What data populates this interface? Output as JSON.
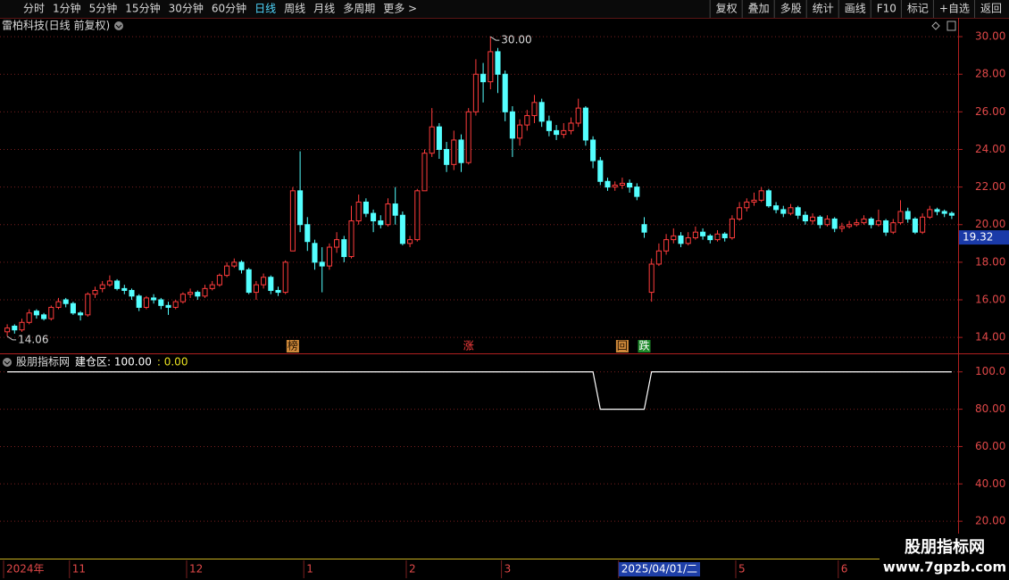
{
  "toolbar": {
    "periods": [
      {
        "label": "分时",
        "active": false
      },
      {
        "label": "1分钟",
        "active": false
      },
      {
        "label": "5分钟",
        "active": false
      },
      {
        "label": "15分钟",
        "active": false
      },
      {
        "label": "30分钟",
        "active": false
      },
      {
        "label": "60分钟",
        "active": false
      },
      {
        "label": "日线",
        "active": true
      },
      {
        "label": "周线",
        "active": false
      },
      {
        "label": "月线",
        "active": false
      },
      {
        "label": "多周期",
        "active": false
      },
      {
        "label": "更多 >",
        "active": false
      }
    ],
    "tools": [
      "复权",
      "叠加",
      "多股",
      "统计",
      "画线",
      "F10",
      "标记",
      "+自选",
      "返回"
    ]
  },
  "chart_data": {
    "type": "candlestick",
    "title": "雷柏科技(日线 前复权)",
    "up_color": "#ff3c3c",
    "down_color": "#54ffff",
    "grid": true,
    "ylim": [
      13.2,
      31.0
    ],
    "yticks": [
      {
        "value": 14,
        "label": "14.00"
      },
      {
        "value": 16,
        "label": "16.00"
      },
      {
        "value": 18,
        "label": "18.00"
      },
      {
        "value": 20,
        "label": "20.00"
      },
      {
        "value": 22,
        "label": "22.00"
      },
      {
        "value": 24,
        "label": "24.00"
      },
      {
        "value": 26,
        "label": "26.00"
      },
      {
        "value": 28,
        "label": "28.00"
      },
      {
        "value": 30,
        "label": "30.00"
      }
    ],
    "max_label": "30.00",
    "min_label": "14.06",
    "cursor_price": {
      "value": 19.32,
      "label": "19.32"
    },
    "axis_cursor_index": 84,
    "categories": [
      "2024年",
      null,
      null,
      null,
      null,
      null,
      null,
      null,
      null,
      "11",
      null,
      null,
      null,
      null,
      null,
      null,
      null,
      null,
      null,
      null,
      null,
      null,
      null,
      null,
      null,
      "12",
      null,
      null,
      null,
      null,
      null,
      null,
      null,
      null,
      null,
      null,
      null,
      null,
      null,
      null,
      null,
      "1",
      null,
      null,
      null,
      null,
      null,
      null,
      null,
      null,
      null,
      null,
      null,
      null,
      null,
      "2",
      null,
      null,
      null,
      null,
      null,
      null,
      null,
      null,
      null,
      null,
      null,
      null,
      "3",
      null,
      null,
      null,
      null,
      null,
      null,
      null,
      null,
      null,
      null,
      null,
      null,
      null,
      null,
      null,
      "2025/04/01/二",
      null,
      null,
      null,
      null,
      null,
      null,
      null,
      null,
      null,
      null,
      null,
      null,
      null,
      null,
      null,
      "5",
      null,
      null,
      null,
      null,
      null,
      null,
      null,
      null,
      null,
      null,
      null,
      null,
      null,
      "6",
      null,
      null,
      null,
      null,
      null,
      null,
      null,
      null,
      null,
      null,
      null,
      null,
      null,
      null,
      null
    ],
    "open": [
      14.3,
      14.6,
      14.4,
      14.8,
      15.4,
      15.2,
      15.0,
      15.6,
      16.0,
      15.8,
      15.3,
      15.2,
      16.3,
      16.6,
      16.8,
      17.0,
      16.6,
      16.5,
      16.2,
      15.6,
      16.1,
      16.0,
      15.7,
      15.6,
      15.9,
      16.3,
      16.4,
      16.2,
      16.6,
      16.8,
      17.3,
      17.8,
      18.0,
      17.6,
      16.4,
      16.8,
      17.2,
      16.5,
      16.4,
      18.6,
      21.8,
      20.0,
      19.0,
      18.0,
      17.8,
      18.8,
      19.2,
      18.3,
      20.2,
      21.2,
      20.6,
      20.2,
      20.0,
      21.1,
      20.5,
      19.0,
      19.2,
      21.8,
      23.8,
      25.2,
      24.0,
      23.2,
      24.5,
      23.3,
      26.0,
      28.0,
      27.6,
      29.2,
      28.0,
      26.0,
      24.6,
      25.3,
      25.8,
      26.5,
      25.5,
      25.0,
      24.8,
      25.0,
      25.4,
      26.2,
      24.5,
      23.4,
      22.3,
      22.0,
      22.1,
      22.2,
      22.0,
      20.0,
      16.4,
      17.9,
      18.6,
      19.2,
      19.4,
      19.0,
      19.3,
      19.6,
      19.4,
      19.2,
      19.5,
      19.3,
      20.3,
      20.9,
      21.2,
      21.3,
      21.8,
      21.0,
      20.8,
      20.6,
      20.9,
      20.5,
      20.2,
      20.4,
      20.0,
      20.3,
      19.8,
      19.9,
      20.0,
      20.1,
      20.3,
      20.0,
      20.2,
      19.6,
      20.1,
      20.7,
      20.3,
      19.6,
      20.4,
      20.8,
      20.7,
      20.6
    ],
    "high": [
      14.7,
      14.7,
      15.0,
      15.5,
      15.5,
      15.3,
      15.7,
      16.1,
      16.1,
      15.9,
      15.4,
      16.4,
      16.7,
      17.0,
      17.3,
      17.1,
      16.8,
      16.6,
      16.3,
      16.2,
      16.3,
      16.1,
      15.9,
      16.0,
      16.4,
      16.6,
      16.5,
      16.8,
      17.0,
      17.4,
      18.0,
      18.2,
      18.1,
      17.7,
      17.0,
      17.4,
      17.3,
      16.7,
      18.1,
      22.0,
      23.9,
      20.4,
      19.2,
      18.8,
      19.0,
      19.6,
      19.4,
      21.0,
      21.6,
      21.4,
      20.8,
      20.5,
      21.4,
      22.0,
      20.7,
      19.4,
      21.9,
      24.0,
      26.2,
      25.4,
      24.4,
      25.0,
      24.8,
      26.2,
      28.8,
      28.6,
      30.0,
      29.4,
      28.2,
      26.3,
      25.6,
      26.1,
      26.9,
      26.7,
      25.8,
      25.3,
      25.4,
      25.7,
      26.7,
      26.3,
      24.7,
      23.6,
      22.5,
      22.3,
      22.5,
      22.4,
      22.2,
      20.4,
      18.2,
      19.0,
      19.5,
      19.8,
      19.6,
      19.6,
      19.9,
      19.8,
      19.5,
      19.7,
      19.6,
      20.5,
      21.2,
      21.4,
      21.7,
      22.0,
      21.9,
      21.2,
      21.0,
      21.1,
      21.0,
      20.7,
      20.6,
      20.5,
      20.5,
      20.4,
      20.1,
      20.2,
      20.3,
      20.5,
      20.4,
      20.8,
      20.3,
      20.3,
      21.3,
      20.9,
      20.4,
      20.6,
      21.0,
      20.9,
      20.8,
      20.7
    ],
    "low": [
      14.06,
      14.2,
      14.3,
      14.7,
      15.0,
      14.9,
      14.9,
      15.5,
      15.6,
      15.2,
      14.9,
      15.1,
      16.1,
      16.4,
      16.7,
      16.5,
      16.3,
      16.0,
      15.4,
      15.5,
      15.8,
      15.5,
      15.2,
      15.5,
      15.8,
      16.1,
      16.0,
      16.1,
      16.5,
      16.7,
      17.2,
      17.7,
      17.4,
      16.3,
      16.0,
      16.6,
      16.3,
      16.2,
      16.3,
      18.6,
      19.6,
      18.6,
      17.6,
      16.4,
      17.6,
      18.5,
      18.0,
      18.2,
      20.0,
      20.4,
      19.6,
      19.8,
      19.9,
      20.0,
      18.9,
      18.8,
      19.1,
      21.8,
      23.6,
      23.5,
      22.8,
      22.9,
      22.8,
      23.2,
      25.8,
      26.5,
      27.2,
      27.0,
      25.5,
      23.6,
      24.2,
      25.0,
      25.4,
      25.2,
      24.7,
      24.5,
      24.6,
      24.8,
      25.2,
      24.2,
      23.0,
      22.1,
      21.8,
      21.8,
      21.9,
      21.7,
      21.3,
      19.3,
      15.9,
      17.8,
      18.4,
      19.0,
      18.8,
      18.9,
      19.2,
      19.2,
      19.0,
      19.1,
      19.1,
      19.2,
      20.2,
      20.7,
      21.0,
      21.2,
      20.9,
      20.6,
      20.4,
      20.5,
      20.3,
      20.0,
      20.0,
      19.8,
      19.9,
      19.6,
      19.6,
      19.8,
      19.9,
      20.0,
      19.8,
      19.9,
      19.4,
      19.5,
      20.0,
      20.1,
      19.5,
      19.5,
      20.3,
      20.5,
      20.4,
      20.3
    ],
    "close": [
      14.5,
      14.4,
      14.8,
      15.3,
      15.2,
      15.0,
      15.6,
      15.9,
      15.8,
      15.3,
      15.2,
      16.3,
      16.5,
      16.8,
      17.0,
      16.6,
      16.5,
      16.2,
      15.6,
      16.1,
      16.0,
      15.7,
      15.6,
      15.9,
      16.3,
      16.4,
      16.2,
      16.6,
      16.8,
      17.3,
      17.8,
      18.0,
      17.6,
      16.4,
      16.8,
      17.2,
      16.5,
      16.4,
      18.0,
      21.8,
      20.0,
      19.1,
      18.0,
      17.8,
      18.8,
      19.2,
      18.3,
      20.2,
      21.2,
      20.6,
      20.2,
      20.0,
      21.1,
      20.5,
      19.0,
      19.2,
      21.8,
      23.8,
      25.2,
      24.0,
      23.2,
      24.5,
      23.3,
      26.0,
      28.0,
      27.6,
      29.2,
      28.0,
      26.0,
      24.6,
      25.3,
      25.8,
      26.5,
      25.5,
      25.0,
      24.8,
      25.0,
      25.4,
      26.2,
      24.5,
      23.4,
      22.3,
      22.0,
      22.1,
      22.2,
      22.0,
      21.5,
      19.6,
      17.9,
      18.6,
      19.2,
      19.4,
      19.0,
      19.3,
      19.6,
      19.4,
      19.2,
      19.5,
      19.3,
      20.3,
      20.9,
      21.2,
      21.3,
      21.8,
      21.0,
      20.8,
      20.6,
      20.9,
      20.5,
      20.2,
      20.4,
      20.0,
      20.3,
      19.8,
      19.9,
      20.0,
      20.1,
      20.3,
      20.0,
      20.2,
      19.6,
      20.1,
      20.7,
      20.3,
      19.6,
      20.4,
      20.8,
      20.7,
      20.6,
      20.5
    ],
    "signals": [
      null,
      null,
      null,
      null,
      null,
      null,
      null,
      null,
      null,
      null,
      null,
      null,
      null,
      null,
      null,
      null,
      null,
      null,
      null,
      null,
      null,
      null,
      null,
      null,
      null,
      null,
      null,
      null,
      null,
      null,
      null,
      null,
      null,
      null,
      null,
      null,
      null,
      null,
      null,
      {
        "label": "榜",
        "color": "#201000",
        "background": "#d08a3a"
      },
      null,
      null,
      null,
      null,
      null,
      null,
      null,
      null,
      null,
      null,
      null,
      null,
      null,
      null,
      null,
      null,
      null,
      null,
      null,
      null,
      null,
      null,
      null,
      {
        "label": "涨",
        "color": "#ff4040",
        "background": null
      },
      null,
      null,
      null,
      null,
      null,
      null,
      null,
      null,
      null,
      null,
      null,
      null,
      null,
      null,
      null,
      null,
      null,
      null,
      null,
      null,
      {
        "label": "回",
        "color": "#201000",
        "background": "#d08a3a"
      },
      null,
      null,
      {
        "label": "跌",
        "color": "#ffffff",
        "background": "#1e8a2a"
      },
      null,
      null,
      null,
      null,
      null,
      null,
      null,
      null,
      null,
      null,
      null,
      null,
      null,
      null,
      null,
      null,
      null,
      null,
      null,
      null,
      null,
      null,
      null,
      null,
      null,
      null,
      null,
      null,
      null,
      null,
      null,
      null,
      null,
      null,
      null,
      null,
      null,
      null,
      null,
      null,
      null,
      null
    ],
    "indicator": {
      "title": "股朋指标网",
      "legend": "建仓区: 100.00",
      "extra": ": 0.00",
      "color": "#ffffff",
      "ylim": [
        0,
        108
      ],
      "yticks": [
        {
          "value": 20,
          "label": "20.00"
        },
        {
          "value": 40,
          "label": "40.00"
        },
        {
          "value": 60,
          "label": "60.00"
        },
        {
          "value": 80,
          "label": "80.00"
        },
        {
          "value": 100,
          "label": "100.0"
        }
      ],
      "values": [
        100,
        100,
        100,
        100,
        100,
        100,
        100,
        100,
        100,
        100,
        100,
        100,
        100,
        100,
        100,
        100,
        100,
        100,
        100,
        100,
        100,
        100,
        100,
        100,
        100,
        100,
        100,
        100,
        100,
        100,
        100,
        100,
        100,
        100,
        100,
        100,
        100,
        100,
        100,
        100,
        100,
        100,
        100,
        100,
        100,
        100,
        100,
        100,
        100,
        100,
        100,
        100,
        100,
        100,
        100,
        100,
        100,
        100,
        100,
        100,
        100,
        100,
        100,
        100,
        100,
        100,
        100,
        100,
        100,
        100,
        100,
        100,
        100,
        100,
        100,
        100,
        100,
        100,
        100,
        100,
        100,
        80,
        80,
        80,
        80,
        80,
        80,
        80,
        100,
        100,
        100,
        100,
        100,
        100,
        100,
        100,
        100,
        100,
        100,
        100,
        100,
        100,
        100,
        100,
        100,
        100,
        100,
        100,
        100,
        100,
        100,
        100,
        100,
        100,
        100,
        100,
        100,
        100,
        100,
        100,
        100,
        100,
        100,
        100,
        100,
        100,
        100,
        100,
        100,
        100
      ]
    }
  },
  "watermark": {
    "title": "股朋指标网",
    "url": "www.7gpzb.com"
  }
}
